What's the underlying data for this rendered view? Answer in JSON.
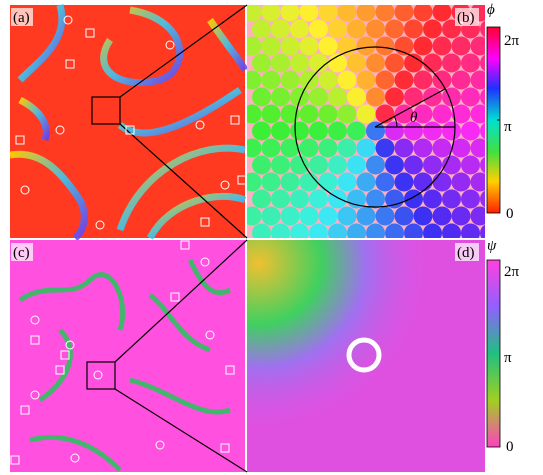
{
  "panels": [
    {
      "label": "(a)"
    },
    {
      "label": "(b)",
      "angle_label": "θ"
    },
    {
      "label": "(c)"
    },
    {
      "label": "(d)"
    }
  ],
  "colorbars": [
    {
      "symbol": "ϕ",
      "ticks": [
        "2π",
        "π",
        "0"
      ]
    },
    {
      "symbol": "ψ",
      "ticks": [
        "2π",
        "π",
        "0"
      ]
    }
  ]
}
